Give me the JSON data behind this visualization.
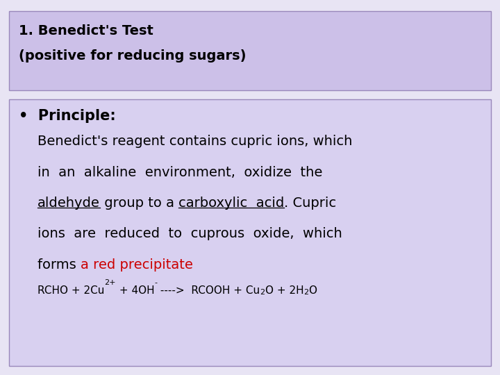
{
  "title_line1": "1. Benedict's Test",
  "title_line2": "(positive for reducing sugars)",
  "title_bg_color": "#ccc0e8",
  "body_bg_color": "#d8d0f0",
  "outer_bg_color": "#e8e4f4",
  "border_color": "#9988bb",
  "title_font_size": 14,
  "body_font_size": 14,
  "bullet_font_size": 15,
  "equation_font_size": 11,
  "bullet_text": "Principle:",
  "body_line1": "Benedict's reagent contains cupric ions, which",
  "body_line2_parts": [
    "in  an  alkaline  environment,  oxidize  the"
  ],
  "body_line3_p1": "aldehyde",
  "body_line3_p2": " group to a ",
  "body_line3_p3": "carboxylic  acid",
  "body_line3_p4": ". Cupric",
  "body_line4": "ions  are  reduced  to  cuprous  oxide,  which",
  "body_line5_black": "forms ",
  "body_line5_red": "a red precipitate",
  "eq_p1": "RCHO + 2Cu",
  "eq_sup1": "2+",
  "eq_p2": " + 4OH",
  "eq_sup2": "-",
  "eq_p3": " ---->  RCOOH + Cu",
  "eq_sub1": "2",
  "eq_p4": "O + 2H",
  "eq_sub2": "2",
  "eq_p5": "O",
  "red_color": "#cc0000",
  "text_color": "#000000"
}
